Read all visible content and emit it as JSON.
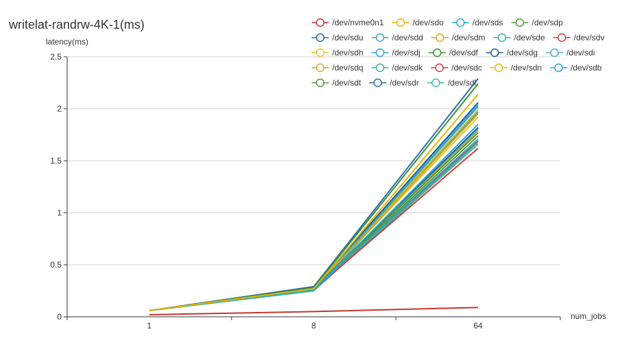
{
  "chart_data": {
    "type": "line",
    "title": "writelat-randrw-4K-1(ms)",
    "xlabel": "num_jobs",
    "ylabel": "latency(ms)",
    "categories": [
      "1",
      "8",
      "64"
    ],
    "ylim": [
      0,
      2.5
    ],
    "yticks": [
      0,
      0.5,
      1,
      1.5,
      2,
      2.5
    ],
    "ytick_labels": [
      "0",
      "0.5",
      "1",
      "1.5",
      "2",
      "2.5"
    ],
    "grid": true,
    "legend_position": "top-right",
    "series": [
      {
        "name": "/dev/nvme0n1",
        "color": "#c23531",
        "values": [
          0.02,
          0.05,
          0.09
        ]
      },
      {
        "name": "/dev/sdo",
        "color": "#e6b600",
        "values": [
          0.06,
          0.27,
          2.14
        ]
      },
      {
        "name": "/dev/sds",
        "color": "#27a7c9",
        "values": [
          0.06,
          0.26,
          1.85
        ]
      },
      {
        "name": "/dev/sdp",
        "color": "#4a9a3a",
        "values": [
          0.06,
          0.27,
          1.77
        ]
      },
      {
        "name": "/dev/sdu",
        "color": "#2469a6",
        "values": [
          0.06,
          0.27,
          1.82
        ]
      },
      {
        "name": "/dev/sdd",
        "color": "#3ba0c8",
        "values": [
          0.06,
          0.26,
          1.71
        ]
      },
      {
        "name": "/dev/sdm",
        "color": "#d8a920",
        "values": [
          0.06,
          0.27,
          1.95
        ]
      },
      {
        "name": "/dev/sde",
        "color": "#40b09a",
        "values": [
          0.06,
          0.25,
          1.97
        ]
      },
      {
        "name": "/dev/sdv",
        "color": "#c9403a",
        "values": [
          0.06,
          0.26,
          1.62
        ]
      },
      {
        "name": "/dev/sdh",
        "color": "#e8c029",
        "values": [
          0.06,
          0.27,
          1.92
        ]
      },
      {
        "name": "/dev/sdj",
        "color": "#2fa2d0",
        "values": [
          0.06,
          0.27,
          2.02
        ]
      },
      {
        "name": "/dev/sdf",
        "color": "#3d8f2e",
        "values": [
          0.06,
          0.28,
          2.24
        ]
      },
      {
        "name": "/dev/sdg",
        "color": "#1f5f9a",
        "values": [
          0.06,
          0.28,
          2.06
        ]
      },
      {
        "name": "/dev/sdi",
        "color": "#48b4d0",
        "values": [
          0.06,
          0.27,
          2.04
        ]
      },
      {
        "name": "/dev/sdq",
        "color": "#d9a632",
        "values": [
          0.06,
          0.26,
          1.79
        ]
      },
      {
        "name": "/dev/sdk",
        "color": "#3cb2a0",
        "values": [
          0.06,
          0.25,
          1.68
        ]
      },
      {
        "name": "/dev/sdc",
        "color": "#cc3d42",
        "values": [
          0.06,
          0.26,
          1.69
        ]
      },
      {
        "name": "/dev/sdn",
        "color": "#e2b817",
        "values": [
          0.06,
          0.27,
          1.99
        ]
      },
      {
        "name": "/dev/sdb",
        "color": "#2e9fd6",
        "values": [
          0.06,
          0.26,
          1.81
        ]
      },
      {
        "name": "/dev/sdt",
        "color": "#4c9b3f",
        "values": [
          0.06,
          0.26,
          1.74
        ]
      },
      {
        "name": "/dev/sdr",
        "color": "#2a6fb0",
        "values": [
          0.06,
          0.29,
          2.29
        ]
      },
      {
        "name": "/dev/sdl",
        "color": "#49b3a8",
        "values": [
          0.06,
          0.25,
          1.66
        ]
      }
    ]
  }
}
